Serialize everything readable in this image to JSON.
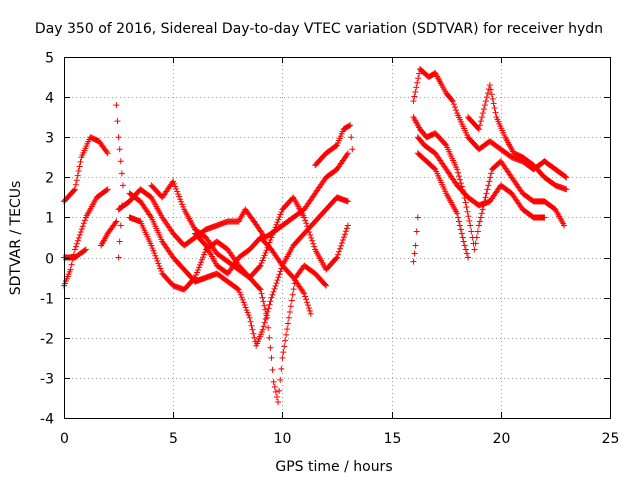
{
  "chart_data": {
    "type": "scatter",
    "title": "Day 350 of 2016, Sidereal Day-to-day VTEC variation (SDTVAR) for receiver hydn",
    "xlabel": "GPS time / hours",
    "ylabel": "SDTVAR / TECUs",
    "xlim": [
      0,
      25
    ],
    "ylim": [
      -4,
      5
    ],
    "xticks": [
      0,
      5,
      10,
      15,
      20,
      25
    ],
    "yticks": [
      -4,
      -3,
      -2,
      -1,
      0,
      1,
      2,
      3,
      4,
      5
    ],
    "grid": true,
    "marker": "+",
    "color": "#ff0000",
    "series": [
      {
        "name": "trace-1",
        "points": [
          [
            0.0,
            1.4
          ],
          [
            0.5,
            1.7
          ],
          [
            0.8,
            2.5
          ],
          [
            1.2,
            3.0
          ],
          [
            1.6,
            2.9
          ],
          [
            2.0,
            2.6
          ]
        ]
      },
      {
        "name": "trace-2",
        "points": [
          [
            0.0,
            -0.7
          ],
          [
            0.3,
            -0.3
          ],
          [
            0.5,
            0.2
          ],
          [
            1.0,
            1.0
          ],
          [
            1.5,
            1.5
          ],
          [
            2.0,
            1.7
          ]
        ]
      },
      {
        "name": "trace-3",
        "points": [
          [
            0.0,
            0.0
          ],
          [
            0.5,
            0.0
          ],
          [
            1.0,
            0.2
          ]
        ]
      },
      {
        "name": "trace-4",
        "points": [
          [
            1.7,
            0.3
          ],
          [
            2.0,
            0.6
          ],
          [
            2.4,
            0.9
          ]
        ]
      },
      {
        "name": "trace-5",
        "points": [
          [
            2.4,
            3.8
          ],
          [
            2.5,
            3.0
          ],
          [
            2.6,
            2.4
          ],
          [
            2.7,
            1.8
          ],
          [
            2.6,
            0.8
          ],
          [
            2.5,
            0.0
          ]
        ]
      },
      {
        "name": "trace-6",
        "points": [
          [
            2.5,
            1.2
          ],
          [
            3.0,
            1.4
          ],
          [
            3.5,
            1.7
          ],
          [
            4.0,
            1.5
          ],
          [
            4.5,
            1.0
          ],
          [
            5.0,
            0.6
          ],
          [
            5.5,
            0.3
          ],
          [
            6.0,
            0.5
          ],
          [
            6.5,
            0.7
          ],
          [
            7.0,
            0.8
          ],
          [
            7.5,
            0.9
          ],
          [
            8.0,
            0.9
          ],
          [
            8.3,
            1.2
          ],
          [
            8.7,
            0.9
          ],
          [
            9.2,
            0.5
          ],
          [
            9.5,
            0.6
          ],
          [
            10.0,
            0.8
          ],
          [
            10.5,
            1.0
          ],
          [
            11.0,
            1.2
          ],
          [
            11.5,
            1.6
          ],
          [
            12.0,
            2.0
          ],
          [
            12.5,
            2.2
          ],
          [
            13.0,
            2.6
          ]
        ]
      },
      {
        "name": "trace-7",
        "points": [
          [
            3.0,
            1.6
          ],
          [
            3.5,
            1.4
          ],
          [
            4.0,
            1.0
          ],
          [
            4.5,
            0.4
          ],
          [
            5.0,
            0.0
          ],
          [
            5.5,
            -0.3
          ],
          [
            6.0,
            -0.6
          ],
          [
            6.5,
            -0.5
          ],
          [
            7.0,
            -0.4
          ],
          [
            7.5,
            -0.6
          ],
          [
            8.0,
            -0.8
          ],
          [
            8.5,
            -1.5
          ],
          [
            8.8,
            -2.2
          ],
          [
            9.1,
            -1.8
          ],
          [
            9.5,
            -1.0
          ],
          [
            10.0,
            -0.2
          ],
          [
            10.5,
            0.3
          ],
          [
            11.0,
            0.6
          ],
          [
            11.5,
            0.9
          ],
          [
            12.0,
            1.2
          ],
          [
            12.5,
            1.5
          ],
          [
            13.0,
            1.4
          ]
        ]
      },
      {
        "name": "trace-8",
        "points": [
          [
            3.0,
            1.0
          ],
          [
            3.5,
            0.9
          ],
          [
            4.0,
            0.3
          ],
          [
            4.5,
            -0.4
          ],
          [
            5.0,
            -0.7
          ],
          [
            5.5,
            -0.8
          ],
          [
            6.0,
            -0.5
          ],
          [
            6.5,
            0.2
          ],
          [
            7.0,
            0.4
          ],
          [
            7.5,
            0.2
          ],
          [
            8.0,
            -0.2
          ],
          [
            8.5,
            -0.5
          ],
          [
            9.0,
            -0.8
          ],
          [
            9.3,
            -1.5
          ],
          [
            9.5,
            -2.5
          ],
          [
            9.6,
            -3.1
          ],
          [
            9.8,
            -3.6
          ],
          [
            10.0,
            -2.5
          ],
          [
            10.3,
            -1.5
          ],
          [
            10.6,
            -0.5
          ],
          [
            11.0,
            -0.2
          ],
          [
            11.5,
            -0.4
          ],
          [
            12.0,
            -0.7
          ]
        ]
      },
      {
        "name": "trace-9",
        "points": [
          [
            4.0,
            1.8
          ],
          [
            4.5,
            1.5
          ],
          [
            5.0,
            1.9
          ],
          [
            5.5,
            1.2
          ],
          [
            6.0,
            0.7
          ],
          [
            6.5,
            0.5
          ],
          [
            7.0,
            0.1
          ],
          [
            7.5,
            -0.1
          ],
          [
            8.0,
            -0.3
          ],
          [
            8.5,
            -0.5
          ],
          [
            9.0,
            -0.2
          ],
          [
            9.5,
            0.5
          ],
          [
            10.0,
            1.2
          ],
          [
            10.5,
            1.5
          ],
          [
            11.0,
            1.0
          ],
          [
            11.5,
            0.2
          ],
          [
            12.0,
            -0.3
          ],
          [
            12.5,
            0.0
          ],
          [
            13.0,
            0.8
          ]
        ]
      },
      {
        "name": "trace-10",
        "points": [
          [
            6.0,
            0.6
          ],
          [
            6.5,
            0.3
          ],
          [
            7.0,
            -0.2
          ],
          [
            7.5,
            -0.4
          ],
          [
            8.0,
            0.0
          ],
          [
            8.5,
            0.2
          ],
          [
            9.0,
            0.5
          ],
          [
            9.5,
            0.2
          ],
          [
            10.0,
            -0.2
          ],
          [
            10.5,
            -0.5
          ],
          [
            11.0,
            -0.9
          ],
          [
            11.3,
            -1.4
          ]
        ]
      },
      {
        "name": "trace-11",
        "points": [
          [
            11.5,
            2.3
          ],
          [
            12.0,
            2.6
          ],
          [
            12.5,
            2.8
          ],
          [
            12.8,
            3.2
          ],
          [
            13.1,
            3.3
          ],
          [
            13.2,
            2.7
          ]
        ]
      },
      {
        "name": "trace-12",
        "points": [
          [
            16.0,
            3.9
          ],
          [
            16.3,
            4.7
          ],
          [
            16.7,
            4.5
          ],
          [
            17.0,
            4.6
          ],
          [
            17.3,
            4.3
          ],
          [
            17.5,
            4.1
          ],
          [
            17.8,
            3.9
          ],
          [
            18.0,
            3.6
          ],
          [
            18.5,
            3.0
          ],
          [
            19.0,
            2.7
          ],
          [
            19.5,
            2.9
          ],
          [
            20.0,
            2.7
          ],
          [
            20.5,
            2.5
          ],
          [
            21.0,
            2.4
          ],
          [
            21.5,
            2.2
          ],
          [
            22.0,
            2.4
          ],
          [
            22.5,
            2.2
          ],
          [
            23.0,
            2.0
          ]
        ]
      },
      {
        "name": "trace-13",
        "points": [
          [
            16.0,
            3.5
          ],
          [
            16.3,
            3.2
          ],
          [
            16.6,
            3.0
          ],
          [
            17.0,
            3.1
          ],
          [
            17.5,
            2.8
          ],
          [
            18.0,
            2.2
          ],
          [
            18.3,
            1.6
          ],
          [
            18.6,
            0.8
          ],
          [
            18.8,
            0.2
          ],
          [
            19.0,
            0.8
          ],
          [
            19.3,
            1.5
          ],
          [
            19.6,
            2.2
          ],
          [
            20.0,
            2.4
          ],
          [
            20.5,
            2.0
          ],
          [
            21.0,
            1.6
          ],
          [
            21.5,
            1.4
          ],
          [
            22.0,
            1.4
          ],
          [
            22.5,
            1.2
          ],
          [
            22.9,
            0.8
          ]
        ]
      },
      {
        "name": "trace-14",
        "points": [
          [
            16.2,
            3.0
          ],
          [
            16.5,
            2.8
          ],
          [
            17.0,
            2.6
          ],
          [
            17.5,
            2.2
          ],
          [
            18.0,
            1.8
          ],
          [
            18.5,
            1.5
          ],
          [
            19.0,
            1.3
          ],
          [
            19.5,
            1.4
          ],
          [
            20.0,
            1.8
          ],
          [
            20.5,
            1.6
          ],
          [
            21.0,
            1.2
          ],
          [
            21.5,
            1.0
          ],
          [
            22.0,
            1.0
          ]
        ]
      },
      {
        "name": "trace-15",
        "points": [
          [
            16.2,
            2.6
          ],
          [
            16.6,
            2.4
          ],
          [
            17.0,
            2.2
          ],
          [
            17.5,
            1.6
          ],
          [
            18.0,
            1.1
          ],
          [
            18.3,
            0.4
          ],
          [
            18.5,
            0.0
          ]
        ]
      },
      {
        "name": "trace-16",
        "points": [
          [
            18.5,
            3.5
          ],
          [
            19.0,
            3.2
          ],
          [
            19.5,
            4.3
          ],
          [
            19.8,
            3.5
          ],
          [
            20.2,
            3.0
          ],
          [
            20.6,
            2.6
          ],
          [
            21.0,
            2.5
          ],
          [
            21.5,
            2.3
          ],
          [
            22.0,
            2.0
          ],
          [
            22.5,
            1.8
          ],
          [
            23.0,
            1.7
          ]
        ]
      },
      {
        "name": "trace-17",
        "points": [
          [
            16.0,
            -0.1
          ],
          [
            16.1,
            0.3
          ],
          [
            16.2,
            1.0
          ]
        ]
      }
    ]
  }
}
